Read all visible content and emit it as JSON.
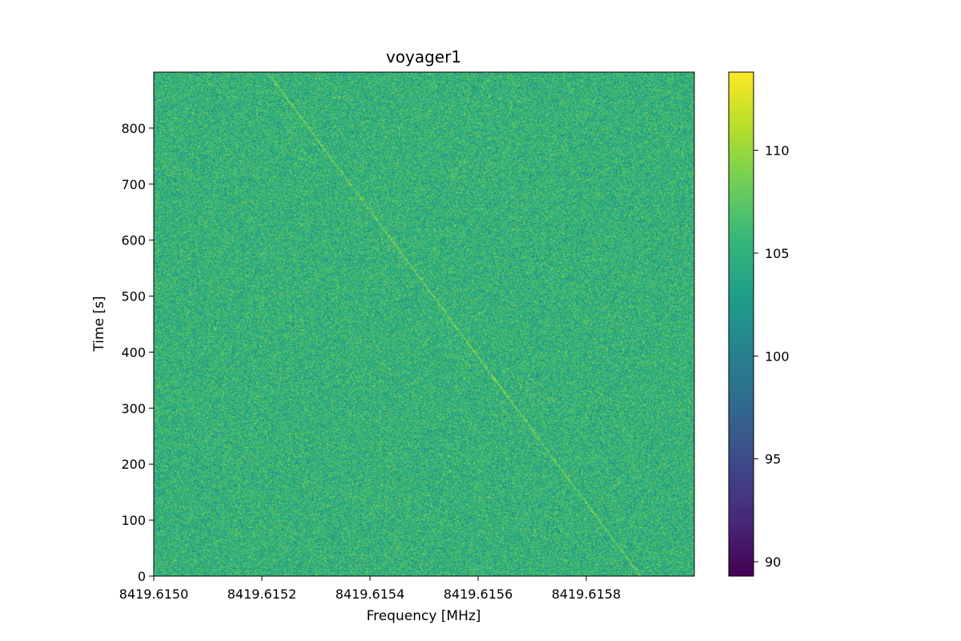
{
  "chart_data": {
    "type": "heatmap",
    "title": "voyager1",
    "xlabel": "Frequency [MHz]",
    "ylabel": "Time [s]",
    "xlim": [
      8419.615,
      8419.616
    ],
    "ylim": [
      0,
      900
    ],
    "x_ticks": [
      8419.615,
      8419.6152,
      8419.6154,
      8419.6156,
      8419.6158
    ],
    "x_tick_labels": [
      "8419.6150",
      "8419.6152",
      "8419.6154",
      "8419.6156",
      "8419.6158"
    ],
    "y_ticks": [
      0,
      100,
      200,
      300,
      400,
      500,
      600,
      700,
      800
    ],
    "y_tick_labels": [
      "0",
      "100",
      "200",
      "300",
      "400",
      "500",
      "600",
      "700",
      "800"
    ],
    "colorbar": {
      "colormap": "viridis",
      "range": [
        89.3,
        113.8
      ],
      "ticks": [
        90,
        95,
        100,
        105,
        110
      ],
      "tick_labels": [
        "90",
        "95",
        "100",
        "105",
        "110"
      ],
      "colors": [
        "#440154",
        "#482878",
        "#3e4989",
        "#31688e",
        "#26828e",
        "#1f9e89",
        "#35b779",
        "#6ece58",
        "#b5de2b",
        "#fde725"
      ]
    },
    "background_level": 105,
    "noise_range": [
      101,
      110
    ],
    "signal": {
      "description_points": [
        {
          "freq": 8419.61521,
          "time": 900
        },
        {
          "freq": 8419.6159,
          "time": 0
        }
      ],
      "level": 109
    }
  }
}
